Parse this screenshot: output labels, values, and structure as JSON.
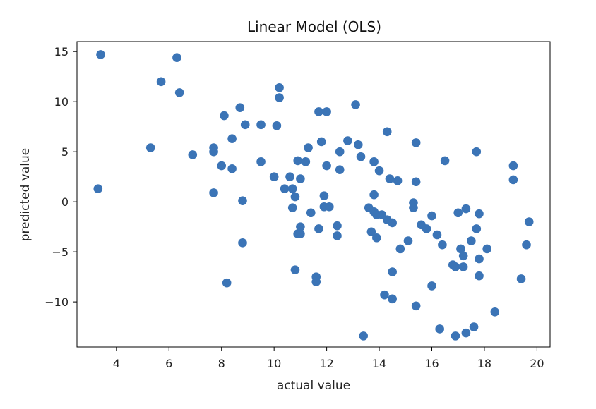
{
  "chart_data": {
    "type": "scatter",
    "title": "Linear Model (OLS)",
    "xlabel": "actual value",
    "ylabel": "predicted value",
    "xlim": [
      2.5,
      20.5
    ],
    "ylim": [
      -14.5,
      16.0
    ],
    "x_ticks": [
      4,
      6,
      8,
      10,
      12,
      14,
      16,
      18,
      20
    ],
    "x_tick_labels": [
      "4",
      "6",
      "8",
      "10",
      "12",
      "14",
      "16",
      "18",
      "20"
    ],
    "y_ticks": [
      15,
      10,
      5,
      0,
      -5,
      -10
    ],
    "y_tick_labels": [
      "15",
      "10",
      "5",
      "0",
      "−5",
      "−10"
    ],
    "grid": false,
    "marker_color": "#3b74b6",
    "series": [
      {
        "points": [
          [
            3.4,
            14.7
          ],
          [
            3.3,
            1.3
          ],
          [
            5.3,
            5.4
          ],
          [
            5.7,
            12.0
          ],
          [
            6.3,
            14.4
          ],
          [
            6.4,
            10.9
          ],
          [
            6.9,
            4.7
          ],
          [
            7.7,
            5.4
          ],
          [
            7.7,
            5.0
          ],
          [
            7.7,
            0.9
          ],
          [
            8.0,
            3.6
          ],
          [
            8.1,
            8.6
          ],
          [
            8.2,
            -8.1
          ],
          [
            8.4,
            6.3
          ],
          [
            8.4,
            3.3
          ],
          [
            8.7,
            9.4
          ],
          [
            8.8,
            0.1
          ],
          [
            8.8,
            -4.1
          ],
          [
            8.9,
            7.7
          ],
          [
            9.5,
            7.7
          ],
          [
            9.5,
            4.0
          ],
          [
            10.1,
            7.6
          ],
          [
            10.0,
            2.5
          ],
          [
            10.2,
            11.4
          ],
          [
            10.2,
            10.4
          ],
          [
            10.4,
            1.3
          ],
          [
            10.6,
            2.5
          ],
          [
            10.7,
            1.3
          ],
          [
            10.7,
            -0.6
          ],
          [
            10.8,
            0.5
          ],
          [
            10.8,
            -6.8
          ],
          [
            10.9,
            4.1
          ],
          [
            10.9,
            -3.2
          ],
          [
            11.0,
            -2.5
          ],
          [
            11.0,
            -3.2
          ],
          [
            11.0,
            2.3
          ],
          [
            11.2,
            4.0
          ],
          [
            11.3,
            5.4
          ],
          [
            11.4,
            -1.1
          ],
          [
            11.6,
            -7.5
          ],
          [
            11.6,
            -8.0
          ],
          [
            11.7,
            9.0
          ],
          [
            11.7,
            -2.7
          ],
          [
            11.8,
            6.0
          ],
          [
            11.9,
            0.6
          ],
          [
            11.9,
            -0.5
          ],
          [
            12.0,
            9.0
          ],
          [
            12.0,
            3.6
          ],
          [
            12.1,
            -0.5
          ],
          [
            12.4,
            -2.4
          ],
          [
            12.4,
            -3.4
          ],
          [
            12.5,
            3.2
          ],
          [
            12.5,
            5.0
          ],
          [
            12.8,
            6.1
          ],
          [
            13.1,
            9.7
          ],
          [
            13.2,
            5.7
          ],
          [
            13.3,
            4.5
          ],
          [
            13.4,
            -13.4
          ],
          [
            13.6,
            -0.6
          ],
          [
            13.7,
            -3.0
          ],
          [
            13.8,
            4.0
          ],
          [
            13.8,
            0.7
          ],
          [
            13.8,
            -1.0
          ],
          [
            13.9,
            -3.6
          ],
          [
            13.9,
            -1.3
          ],
          [
            14.0,
            3.1
          ],
          [
            14.1,
            -1.3
          ],
          [
            14.2,
            -9.3
          ],
          [
            14.3,
            -1.8
          ],
          [
            14.3,
            7.0
          ],
          [
            14.4,
            2.3
          ],
          [
            14.5,
            -2.1
          ],
          [
            14.5,
            -7.0
          ],
          [
            14.5,
            -9.7
          ],
          [
            14.7,
            2.1
          ],
          [
            14.8,
            -4.7
          ],
          [
            15.1,
            -3.9
          ],
          [
            15.3,
            -0.1
          ],
          [
            15.3,
            -0.6
          ],
          [
            15.4,
            5.9
          ],
          [
            15.4,
            2.0
          ],
          [
            15.4,
            -10.4
          ],
          [
            15.6,
            -2.3
          ],
          [
            15.8,
            -2.7
          ],
          [
            16.0,
            -8.4
          ],
          [
            16.0,
            -1.4
          ],
          [
            16.2,
            -3.3
          ],
          [
            16.3,
            -12.7
          ],
          [
            16.4,
            -4.3
          ],
          [
            16.5,
            4.1
          ],
          [
            16.8,
            -6.3
          ],
          [
            16.9,
            -6.5
          ],
          [
            16.9,
            -13.4
          ],
          [
            17.0,
            -1.1
          ],
          [
            17.1,
            -4.7
          ],
          [
            17.2,
            -5.4
          ],
          [
            17.2,
            -6.5
          ],
          [
            17.3,
            -0.7
          ],
          [
            17.3,
            -13.1
          ],
          [
            17.5,
            -3.9
          ],
          [
            17.6,
            -12.5
          ],
          [
            17.7,
            -2.7
          ],
          [
            17.8,
            -1.2
          ],
          [
            17.7,
            5.0
          ],
          [
            17.8,
            -7.4
          ],
          [
            17.8,
            -5.7
          ],
          [
            18.1,
            -4.7
          ],
          [
            18.4,
            -11.0
          ],
          [
            19.1,
            3.6
          ],
          [
            19.1,
            2.2
          ],
          [
            19.4,
            -7.7
          ],
          [
            19.6,
            -4.3
          ],
          [
            19.7,
            -2.0
          ]
        ]
      }
    ]
  }
}
